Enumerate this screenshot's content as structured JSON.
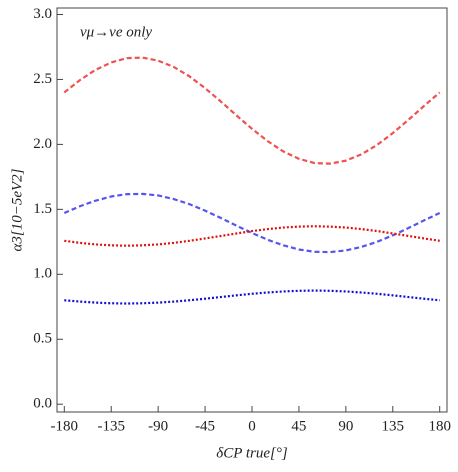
{
  "chart_data": {
    "type": "line",
    "annotation": "νμ→νe only",
    "xlabel": "δCP true[°]",
    "ylabel": "α3[10−5eV2]",
    "x": [
      -180,
      -165,
      -150,
      -135,
      -120,
      -105,
      -90,
      -75,
      -60,
      -45,
      -30,
      -15,
      0,
      15,
      30,
      45,
      60,
      75,
      90,
      105,
      120,
      135,
      150,
      165,
      180
    ],
    "series": [
      {
        "color": "#f05050",
        "style": "dashed",
        "values": [
          2.4,
          2.495,
          2.574,
          2.631,
          2.664,
          2.668,
          2.645,
          2.596,
          2.524,
          2.433,
          2.331,
          2.224,
          2.12,
          2.025,
          1.946,
          1.889,
          1.856,
          1.852,
          1.875,
          1.924,
          1.996,
          2.087,
          2.189,
          2.296,
          2.4
        ]
      },
      {
        "color": "#5555f0",
        "style": "dashed",
        "values": [
          1.472,
          1.524,
          1.567,
          1.599,
          1.617,
          1.619,
          1.607,
          1.579,
          1.54,
          1.49,
          1.434,
          1.375,
          1.318,
          1.266,
          1.223,
          1.191,
          1.173,
          1.171,
          1.184,
          1.211,
          1.25,
          1.3,
          1.356,
          1.415,
          1.472
        ]
      },
      {
        "color": "#e01010",
        "style": "dotted",
        "values": [
          1.258,
          1.242,
          1.23,
          1.223,
          1.22,
          1.223,
          1.23,
          1.242,
          1.258,
          1.276,
          1.295,
          1.314,
          1.333,
          1.348,
          1.36,
          1.367,
          1.37,
          1.367,
          1.36,
          1.348,
          1.333,
          1.314,
          1.295,
          1.276,
          1.258
        ]
      },
      {
        "color": "#1010d0",
        "style": "dotted",
        "values": [
          0.8,
          0.79,
          0.782,
          0.777,
          0.775,
          0.777,
          0.782,
          0.79,
          0.8,
          0.812,
          0.825,
          0.838,
          0.85,
          0.86,
          0.868,
          0.873,
          0.875,
          0.873,
          0.868,
          0.86,
          0.85,
          0.838,
          0.825,
          0.812,
          0.8
        ]
      }
    ],
    "xlim": [
      -187,
      187
    ],
    "ylim": [
      -0.06,
      3.05
    ],
    "xticks": [
      -180,
      -135,
      -90,
      -45,
      0,
      45,
      90,
      135,
      180
    ],
    "yticks": [
      {
        "value": 0,
        "label": "0.0"
      },
      0.5,
      {
        "value": 1,
        "label": "1.0"
      },
      1.5,
      {
        "value": 2,
        "label": "2.0"
      },
      2.5,
      {
        "value": 3,
        "label": "3.0"
      }
    ]
  }
}
